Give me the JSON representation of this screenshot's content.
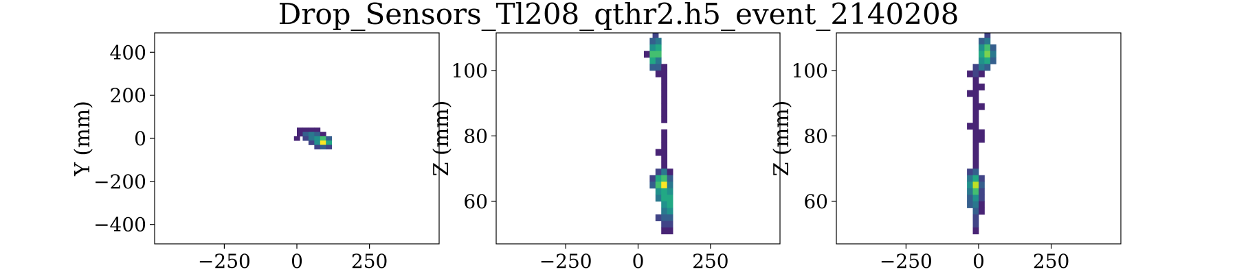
{
  "chart_data": [
    {
      "type": "heatmap",
      "panel": "xy",
      "xlabel": "",
      "ylabel": "Y (mm)",
      "xlim": [
        -490,
        490
      ],
      "ylim": [
        -490,
        490
      ],
      "xticks": [
        -250,
        0,
        250
      ],
      "yticks": [
        -400,
        -200,
        0,
        200,
        400
      ],
      "cell": [
        20,
        20
      ],
      "cells": [
        [
          10,
          40,
          1
        ],
        [
          30,
          40,
          1
        ],
        [
          50,
          40,
          1
        ],
        [
          70,
          40,
          1
        ],
        [
          10,
          20,
          1
        ],
        [
          30,
          20,
          3
        ],
        [
          50,
          20,
          4
        ],
        [
          70,
          20,
          3
        ],
        [
          90,
          20,
          1
        ],
        [
          0,
          0,
          1
        ],
        [
          30,
          0,
          2
        ],
        [
          50,
          0,
          4
        ],
        [
          70,
          0,
          5
        ],
        [
          90,
          0,
          7
        ],
        [
          110,
          0,
          3
        ],
        [
          50,
          -20,
          2
        ],
        [
          70,
          -20,
          5
        ],
        [
          90,
          -20,
          10
        ],
        [
          110,
          -20,
          6
        ],
        [
          70,
          -40,
          2
        ],
        [
          90,
          -40,
          3
        ],
        [
          110,
          -40,
          2
        ]
      ]
    },
    {
      "type": "heatmap",
      "panel": "xz",
      "xlabel": "",
      "ylabel": "Z (mm)",
      "xlim": [
        -490,
        490
      ],
      "ylim": [
        47,
        111.5
      ],
      "xticks": [
        -250,
        0,
        250
      ],
      "yticks": [
        60,
        80,
        100
      ],
      "cell": [
        20,
        2
      ],
      "cells": [
        [
          60,
          111,
          2
        ],
        [
          50,
          109,
          3
        ],
        [
          70,
          109,
          4
        ],
        [
          50,
          107,
          5
        ],
        [
          70,
          107,
          6
        ],
        [
          30,
          105,
          1
        ],
        [
          50,
          105,
          7
        ],
        [
          70,
          105,
          7
        ],
        [
          50,
          103,
          6
        ],
        [
          70,
          103,
          4
        ],
        [
          50,
          101,
          3
        ],
        [
          70,
          101,
          3
        ],
        [
          90,
          101,
          1
        ],
        [
          70,
          99,
          1
        ],
        [
          90,
          99,
          1
        ],
        [
          90,
          97,
          1
        ],
        [
          90,
          95,
          1
        ],
        [
          90,
          93,
          1
        ],
        [
          90,
          91,
          1
        ],
        [
          90,
          89,
          1
        ],
        [
          90,
          87,
          1
        ],
        [
          90,
          85,
          1
        ],
        [
          90,
          81,
          1
        ],
        [
          90,
          79,
          1
        ],
        [
          90,
          77,
          1
        ],
        [
          90,
          75,
          1
        ],
        [
          70,
          75,
          1
        ],
        [
          90,
          73,
          1
        ],
        [
          90,
          71,
          1
        ],
        [
          70,
          69,
          2
        ],
        [
          90,
          69,
          4
        ],
        [
          110,
          69,
          1
        ],
        [
          50,
          67,
          2
        ],
        [
          70,
          67,
          6
        ],
        [
          90,
          67,
          7
        ],
        [
          110,
          67,
          3
        ],
        [
          50,
          65,
          3
        ],
        [
          70,
          65,
          7
        ],
        [
          90,
          65,
          10
        ],
        [
          110,
          65,
          4
        ],
        [
          70,
          63,
          5
        ],
        [
          90,
          63,
          6
        ],
        [
          110,
          63,
          5
        ],
        [
          70,
          61,
          4
        ],
        [
          90,
          61,
          6
        ],
        [
          110,
          61,
          6
        ],
        [
          90,
          59,
          5
        ],
        [
          110,
          59,
          6
        ],
        [
          90,
          57,
          4
        ],
        [
          110,
          57,
          5
        ],
        [
          70,
          55,
          2
        ],
        [
          90,
          55,
          3
        ],
        [
          110,
          55,
          3
        ],
        [
          90,
          53,
          2
        ],
        [
          110,
          53,
          2
        ],
        [
          90,
          51,
          1
        ],
        [
          110,
          51,
          1
        ]
      ]
    },
    {
      "type": "heatmap",
      "panel": "yz",
      "xlabel": "",
      "ylabel": "Z (mm)",
      "xlim": [
        -490,
        490
      ],
      "ylim": [
        47,
        111.5
      ],
      "xticks": [
        -250,
        0,
        250
      ],
      "yticks": [
        60,
        80,
        100
      ],
      "cell": [
        20,
        2
      ],
      "cells": [
        [
          30,
          111,
          2
        ],
        [
          10,
          109,
          3
        ],
        [
          30,
          109,
          4
        ],
        [
          10,
          107,
          5
        ],
        [
          30,
          107,
          7
        ],
        [
          50,
          107,
          3
        ],
        [
          10,
          105,
          6
        ],
        [
          30,
          105,
          8
        ],
        [
          50,
          105,
          4
        ],
        [
          10,
          103,
          5
        ],
        [
          30,
          103,
          6
        ],
        [
          50,
          103,
          3
        ],
        [
          -10,
          101,
          2
        ],
        [
          10,
          101,
          4
        ],
        [
          30,
          101,
          3
        ],
        [
          -30,
          99,
          1
        ],
        [
          -10,
          99,
          2
        ],
        [
          10,
          99,
          1
        ],
        [
          -10,
          97,
          1
        ],
        [
          -10,
          95,
          1
        ],
        [
          10,
          95,
          1
        ],
        [
          -30,
          93,
          1
        ],
        [
          -10,
          93,
          1
        ],
        [
          -10,
          91,
          1
        ],
        [
          -10,
          89,
          1
        ],
        [
          10,
          89,
          1
        ],
        [
          -10,
          87,
          1
        ],
        [
          -10,
          85,
          1
        ],
        [
          -30,
          83,
          1
        ],
        [
          -10,
          83,
          1
        ],
        [
          -10,
          81,
          1
        ],
        [
          10,
          81,
          1
        ],
        [
          -10,
          79,
          1
        ],
        [
          10,
          79,
          1
        ],
        [
          -10,
          77,
          1
        ],
        [
          -10,
          75,
          1
        ],
        [
          -10,
          73,
          1
        ],
        [
          -10,
          71,
          1
        ],
        [
          -30,
          69,
          2
        ],
        [
          -10,
          69,
          3
        ],
        [
          -30,
          67,
          4
        ],
        [
          -10,
          67,
          6
        ],
        [
          10,
          67,
          2
        ],
        [
          -30,
          65,
          5
        ],
        [
          -10,
          65,
          9
        ],
        [
          10,
          65,
          3
        ],
        [
          -30,
          63,
          4
        ],
        [
          -10,
          63,
          7
        ],
        [
          10,
          63,
          2
        ],
        [
          -30,
          61,
          3
        ],
        [
          -10,
          61,
          5
        ],
        [
          10,
          61,
          2
        ],
        [
          -30,
          59,
          3
        ],
        [
          -10,
          59,
          4
        ],
        [
          10,
          59,
          1
        ],
        [
          -10,
          57,
          3
        ],
        [
          10,
          57,
          1
        ],
        [
          -10,
          55,
          2
        ],
        [
          -10,
          53,
          2
        ],
        [
          -10,
          51,
          1
        ]
      ]
    }
  ],
  "title": "Drop_Sensors_Tl208_qthr2.h5_event_2140208",
  "colormap": [
    "#440154",
    "#482475",
    "#414487",
    "#355f8d",
    "#2a788e",
    "#21918c",
    "#22a884",
    "#44bf70",
    "#7ad151",
    "#bddf26",
    "#fde725"
  ]
}
